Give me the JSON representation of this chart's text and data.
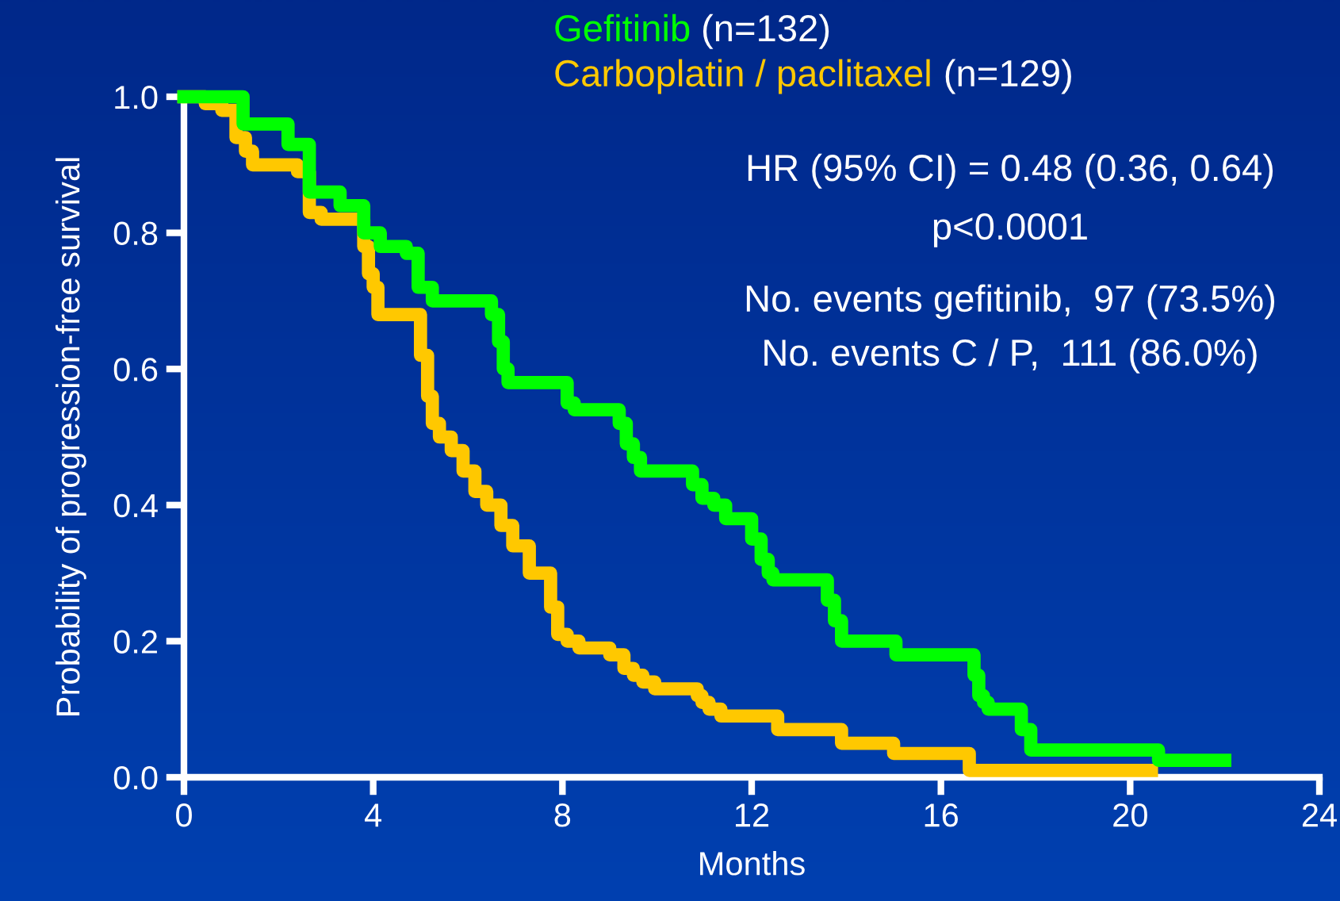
{
  "chart_data": {
    "type": "step",
    "xlabel": "Months",
    "ylabel": "Probability of progression-free survival",
    "xlim": [
      0,
      24
    ],
    "xticks": [
      0,
      4,
      8,
      12,
      16,
      20,
      24
    ],
    "ylim": [
      0,
      1.0
    ],
    "yticks": [
      {
        "value": 0,
        "label": "0.0"
      },
      0.2,
      0.4,
      0.6,
      0.8,
      {
        "value": 1,
        "label": "1.0"
      }
    ],
    "grid": false,
    "legend": "top",
    "line_style": "solid",
    "marker": "none",
    "series": [
      {
        "name": "Gefitinib",
        "color": "#00ff00",
        "x": [
          0,
          1.25,
          2.2,
          2.65,
          3.3,
          3.8,
          4.15,
          4.7,
          4.95,
          5.25,
          6.5,
          6.65,
          6.75,
          6.85,
          8.1,
          8.25,
          9.2,
          9.35,
          9.5,
          9.65,
          10.75,
          10.95,
          11.2,
          11.45,
          12.0,
          12.2,
          12.35,
          12.45,
          13.6,
          13.75,
          13.9,
          15.05,
          16.7,
          16.8,
          16.9,
          17.0,
          17.7,
          17.9,
          20.6,
          22.0
        ],
        "values": [
          1.0,
          0.96,
          0.93,
          0.86,
          0.84,
          0.8,
          0.78,
          0.77,
          0.72,
          0.7,
          0.68,
          0.64,
          0.6,
          0.58,
          0.55,
          0.54,
          0.52,
          0.49,
          0.47,
          0.45,
          0.43,
          0.41,
          0.4,
          0.38,
          0.35,
          0.32,
          0.3,
          0.29,
          0.26,
          0.23,
          0.2,
          0.18,
          0.15,
          0.12,
          0.11,
          0.1,
          0.07,
          0.04,
          0.025,
          0.025
        ]
      },
      {
        "name": "Carboplatin / paclitaxel",
        "color": "#ffc800",
        "x": [
          0,
          0.45,
          0.8,
          1.1,
          1.3,
          1.45,
          2.4,
          2.65,
          2.9,
          3.8,
          3.9,
          4.0,
          4.1,
          5.0,
          5.15,
          5.25,
          5.4,
          5.65,
          5.9,
          6.15,
          6.4,
          6.7,
          6.95,
          7.3,
          7.75,
          7.9,
          8.1,
          8.35,
          9.0,
          9.3,
          9.5,
          9.7,
          9.95,
          10.85,
          10.95,
          11.1,
          11.35,
          12.55,
          13.9,
          15.0,
          16.6,
          20.45
        ],
        "values": [
          1.0,
          0.99,
          0.98,
          0.94,
          0.92,
          0.9,
          0.89,
          0.83,
          0.82,
          0.78,
          0.74,
          0.72,
          0.68,
          0.62,
          0.56,
          0.52,
          0.5,
          0.48,
          0.45,
          0.42,
          0.4,
          0.37,
          0.34,
          0.3,
          0.25,
          0.21,
          0.2,
          0.19,
          0.18,
          0.16,
          0.15,
          0.14,
          0.13,
          0.12,
          0.11,
          0.1,
          0.09,
          0.07,
          0.05,
          0.035,
          0.01,
          0.01
        ]
      }
    ],
    "annotations": [
      "(n=132)",
      "(n=129)",
      "HR (95% CI) = 0.48 (0.36, 0.64)",
      "p<0.0001",
      "No. events gefitinib,  97 (73.5%)",
      "No. events C / P,  111 (86.0%)"
    ]
  }
}
